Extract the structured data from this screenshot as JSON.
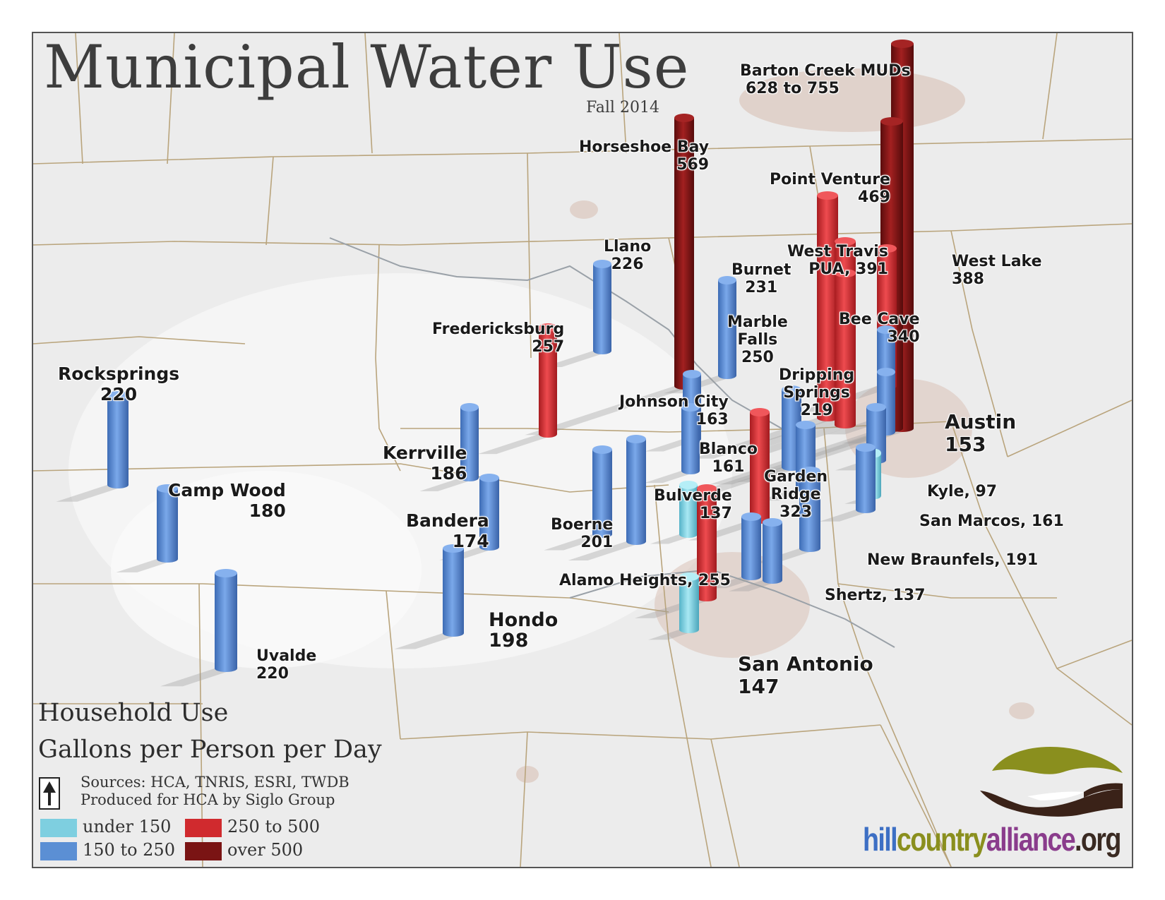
{
  "title": "Municipal Water Use",
  "subtitle": "Fall 2014",
  "colors": {
    "under_150": "#7ecfe0",
    "150_to_250": "#5b8fd4",
    "250_to_500": "#d02a2e",
    "over_500": "#7a1414"
  },
  "places": [
    {
      "id": "barton-creek",
      "name": "Barton Creek MUDs",
      "value": "628 to 755",
      "category": "over_500"
    },
    {
      "id": "horseshoe-bay",
      "name": "Horseshoe Bay",
      "value": "569",
      "category": "over_500"
    },
    {
      "id": "point-venture",
      "name": "Point Venture",
      "value": "469",
      "category": "250_to_500"
    },
    {
      "id": "west-travis",
      "name": "West Travis",
      "value": "PUA, 391",
      "category": "250_to_500"
    },
    {
      "id": "west-lake",
      "name": "West Lake",
      "value": "388",
      "category": "250_to_500"
    },
    {
      "id": "bee-cave",
      "name": "Bee Cave",
      "value": "340",
      "category": "250_to_500"
    },
    {
      "id": "llano",
      "name": "Llano",
      "value": "226",
      "category": "150_to_250"
    },
    {
      "id": "burnet",
      "name": "Burnet",
      "value": "231",
      "category": "150_to_250"
    },
    {
      "id": "marble-falls",
      "name": "Marble",
      "name2": "Falls",
      "value": "250",
      "category": "150_to_250"
    },
    {
      "id": "fredericksburg",
      "name": "Fredericksburg",
      "value": "257",
      "category": "250_to_500"
    },
    {
      "id": "dripping-springs",
      "name": "Dripping",
      "name2": "Springs",
      "value": "219",
      "category": "150_to_250"
    },
    {
      "id": "johnson-city",
      "name": "Johnson City",
      "value": "163",
      "category": "150_to_250"
    },
    {
      "id": "austin",
      "name": "Austin",
      "value": "153",
      "category": "150_to_250"
    },
    {
      "id": "rocksprings",
      "name": "Rocksprings",
      "value": "220",
      "category": "150_to_250"
    },
    {
      "id": "kerrville",
      "name": "Kerrville",
      "value": "186",
      "category": "150_to_250"
    },
    {
      "id": "blanco",
      "name": "Blanco",
      "value": "161",
      "category": "150_to_250"
    },
    {
      "id": "garden-ridge",
      "name": "Garden",
      "name2": "Ridge",
      "value": "323",
      "category": "250_to_500"
    },
    {
      "id": "kyle",
      "name": "Kyle, 97",
      "category": "under_150"
    },
    {
      "id": "camp-wood",
      "name": "Camp Wood",
      "value": "180",
      "category": "150_to_250"
    },
    {
      "id": "bulverde",
      "name": "Bulverde",
      "value": "137",
      "category": "under_150"
    },
    {
      "id": "bandera",
      "name": "Bandera",
      "value": "174",
      "category": "150_to_250"
    },
    {
      "id": "san-marcos",
      "name": "San Marcos, 161",
      "category": "150_to_250"
    },
    {
      "id": "boerne",
      "name": "Boerne",
      "value": "201",
      "category": "150_to_250"
    },
    {
      "id": "new-braunfels",
      "name": "New Braunfels, 191",
      "category": "150_to_250"
    },
    {
      "id": "alamo-heights",
      "name": "Alamo Heights, 255",
      "category": "250_to_500"
    },
    {
      "id": "shertz",
      "name": "Shertz, 137",
      "category": "under_150"
    },
    {
      "id": "hondo",
      "name": "Hondo",
      "value": "198",
      "category": "150_to_250"
    },
    {
      "id": "uvalde",
      "name": "Uvalde",
      "value": "220",
      "category": "150_to_250"
    },
    {
      "id": "san-antonio",
      "name": "San Antonio",
      "value": "147",
      "category": "under_150"
    }
  ],
  "legend": {
    "heading1": "Household Use",
    "heading2": "Gallons per Person per Day",
    "sources": "Sources:  HCA, TNRIS, ESRI, TWDB",
    "produced": "Produced for HCA by Siglo Group",
    "items": [
      {
        "label": "under 150",
        "color": "#7ecfe0"
      },
      {
        "label": "250 to 500",
        "color": "#d02a2e"
      },
      {
        "label": "150 to 250",
        "color": "#5b8fd4"
      },
      {
        "label": "over 500",
        "color": "#7a1414"
      }
    ]
  },
  "brand": {
    "part1": "hill",
    "part2": "country",
    "part3": "alliance",
    ".org": ".org",
    "color1": "#3d6fc4",
    "color2": "#8a8f1e",
    "color3": "#8a3c8c",
    "color4": "#3a2a22"
  }
}
